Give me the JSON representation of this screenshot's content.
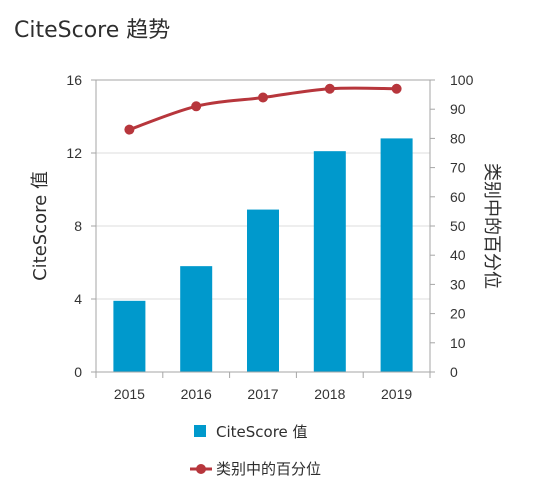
{
  "page": {
    "title": "CiteScore 趋势"
  },
  "colors": {
    "bar": "#0099cc",
    "line": "#b7363c",
    "grid": "#dddddd",
    "axis": "#a6a6a6"
  },
  "chart_data": {
    "type": "bar+line",
    "categories": [
      "2015",
      "2016",
      "2017",
      "2018",
      "2019"
    ],
    "series": [
      {
        "name": "CiteScore 值",
        "type": "bar",
        "axis": "left",
        "values": [
          3.9,
          5.8,
          8.9,
          12.1,
          12.8
        ]
      },
      {
        "name": "类别中的百分位",
        "type": "line",
        "axis": "right",
        "values": [
          83,
          91,
          94,
          97,
          97
        ]
      }
    ],
    "ylabel": "CiteScore 值",
    "ylim": [
      0,
      16
    ],
    "yticks": [
      0,
      4,
      8,
      12,
      16
    ],
    "y2label": "类别中的百分位",
    "y2lim": [
      0,
      100
    ],
    "y2ticks": [
      0,
      10,
      20,
      30,
      40,
      50,
      60,
      70,
      80,
      90,
      100
    ],
    "grid": true,
    "legend_position": "bottom"
  }
}
